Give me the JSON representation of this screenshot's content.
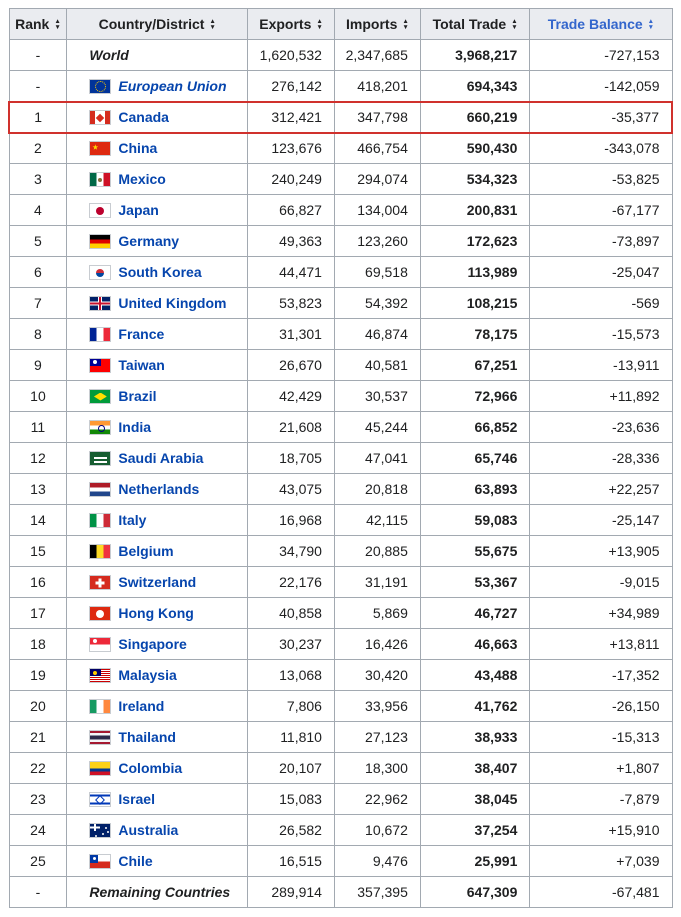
{
  "table": {
    "colors": {
      "link_blue": "#0645ad",
      "header_link_blue": "#3366cc",
      "header_bg": "#eaecf0",
      "table_border": "#a2a9b1",
      "highlight_red": "#d0312d"
    },
    "headers": [
      {
        "label": "Rank",
        "link": false
      },
      {
        "label": "Country/District",
        "link": false
      },
      {
        "label": "Exports",
        "link": false
      },
      {
        "label": "Imports",
        "link": false
      },
      {
        "label": "Total Trade",
        "link": false
      },
      {
        "label": "Trade Balance",
        "link": true
      }
    ],
    "rows": [
      {
        "rank": "-",
        "name": "World",
        "flag": null,
        "link": false,
        "italic": true,
        "highlight": false,
        "exports": "1,620,532",
        "imports": "2,347,685",
        "total": "3,968,217",
        "balance": "-727,153"
      },
      {
        "rank": "-",
        "name": "European Union",
        "flag": "eu",
        "link": true,
        "italic": true,
        "highlight": false,
        "exports": "276,142",
        "imports": "418,201",
        "total": "694,343",
        "balance": "-142,059"
      },
      {
        "rank": "1",
        "name": "Canada",
        "flag": "canada",
        "link": true,
        "italic": false,
        "highlight": true,
        "exports": "312,421",
        "imports": "347,798",
        "total": "660,219",
        "balance": "-35,377"
      },
      {
        "rank": "2",
        "name": "China",
        "flag": "china",
        "link": true,
        "italic": false,
        "highlight": false,
        "exports": "123,676",
        "imports": "466,754",
        "total": "590,430",
        "balance": "-343,078"
      },
      {
        "rank": "3",
        "name": "Mexico",
        "flag": "mexico",
        "link": true,
        "italic": false,
        "highlight": false,
        "exports": "240,249",
        "imports": "294,074",
        "total": "534,323",
        "balance": "-53,825"
      },
      {
        "rank": "4",
        "name": "Japan",
        "flag": "japan",
        "link": true,
        "italic": false,
        "highlight": false,
        "exports": "66,827",
        "imports": "134,004",
        "total": "200,831",
        "balance": "-67,177"
      },
      {
        "rank": "5",
        "name": "Germany",
        "flag": "germany",
        "link": true,
        "italic": false,
        "highlight": false,
        "exports": "49,363",
        "imports": "123,260",
        "total": "172,623",
        "balance": "-73,897"
      },
      {
        "rank": "6",
        "name": "South Korea",
        "flag": "southkorea",
        "link": true,
        "italic": false,
        "highlight": false,
        "exports": "44,471",
        "imports": "69,518",
        "total": "113,989",
        "balance": "-25,047"
      },
      {
        "rank": "7",
        "name": "United Kingdom",
        "flag": "uk",
        "link": true,
        "italic": false,
        "highlight": false,
        "exports": "53,823",
        "imports": "54,392",
        "total": "108,215",
        "balance": "-569"
      },
      {
        "rank": "8",
        "name": "France",
        "flag": "france",
        "link": true,
        "italic": false,
        "highlight": false,
        "exports": "31,301",
        "imports": "46,874",
        "total": "78,175",
        "balance": "-15,573"
      },
      {
        "rank": "9",
        "name": "Taiwan",
        "flag": "taiwan",
        "link": true,
        "italic": false,
        "highlight": false,
        "exports": "26,670",
        "imports": "40,581",
        "total": "67,251",
        "balance": "-13,911"
      },
      {
        "rank": "10",
        "name": "Brazil",
        "flag": "brazil",
        "link": true,
        "italic": false,
        "highlight": false,
        "exports": "42,429",
        "imports": "30,537",
        "total": "72,966",
        "balance": "+11,892"
      },
      {
        "rank": "11",
        "name": "India",
        "flag": "india",
        "link": true,
        "italic": false,
        "highlight": false,
        "exports": "21,608",
        "imports": "45,244",
        "total": "66,852",
        "balance": "-23,636"
      },
      {
        "rank": "12",
        "name": "Saudi Arabia",
        "flag": "saudiarabia",
        "link": true,
        "italic": false,
        "highlight": false,
        "exports": "18,705",
        "imports": "47,041",
        "total": "65,746",
        "balance": "-28,336"
      },
      {
        "rank": "13",
        "name": "Netherlands",
        "flag": "netherlands",
        "link": true,
        "italic": false,
        "highlight": false,
        "exports": "43,075",
        "imports": "20,818",
        "total": "63,893",
        "balance": "+22,257"
      },
      {
        "rank": "14",
        "name": "Italy",
        "flag": "italy",
        "link": true,
        "italic": false,
        "highlight": false,
        "exports": "16,968",
        "imports": "42,115",
        "total": "59,083",
        "balance": "-25,147"
      },
      {
        "rank": "15",
        "name": "Belgium",
        "flag": "belgium",
        "link": true,
        "italic": false,
        "highlight": false,
        "exports": "34,790",
        "imports": "20,885",
        "total": "55,675",
        "balance": "+13,905"
      },
      {
        "rank": "16",
        "name": "Switzerland",
        "flag": "switzerland",
        "link": true,
        "italic": false,
        "highlight": false,
        "exports": "22,176",
        "imports": "31,191",
        "total": "53,367",
        "balance": "-9,015"
      },
      {
        "rank": "17",
        "name": "Hong Kong",
        "flag": "hongkong",
        "link": true,
        "italic": false,
        "highlight": false,
        "exports": "40,858",
        "imports": "5,869",
        "total": "46,727",
        "balance": "+34,989"
      },
      {
        "rank": "18",
        "name": "Singapore",
        "flag": "singapore",
        "link": true,
        "italic": false,
        "highlight": false,
        "exports": "30,237",
        "imports": "16,426",
        "total": "46,663",
        "balance": "+13,811"
      },
      {
        "rank": "19",
        "name": "Malaysia",
        "flag": "malaysia",
        "link": true,
        "italic": false,
        "highlight": false,
        "exports": "13,068",
        "imports": "30,420",
        "total": "43,488",
        "balance": "-17,352"
      },
      {
        "rank": "20",
        "name": "Ireland",
        "flag": "ireland",
        "link": true,
        "italic": false,
        "highlight": false,
        "exports": "7,806",
        "imports": "33,956",
        "total": "41,762",
        "balance": "-26,150"
      },
      {
        "rank": "21",
        "name": "Thailand",
        "flag": "thailand",
        "link": true,
        "italic": false,
        "highlight": false,
        "exports": "11,810",
        "imports": "27,123",
        "total": "38,933",
        "balance": "-15,313"
      },
      {
        "rank": "22",
        "name": "Colombia",
        "flag": "colombia",
        "link": true,
        "italic": false,
        "highlight": false,
        "exports": "20,107",
        "imports": "18,300",
        "total": "38,407",
        "balance": "+1,807"
      },
      {
        "rank": "23",
        "name": "Israel",
        "flag": "israel",
        "link": true,
        "italic": false,
        "highlight": false,
        "exports": "15,083",
        "imports": "22,962",
        "total": "38,045",
        "balance": "-7,879"
      },
      {
        "rank": "24",
        "name": "Australia",
        "flag": "australia",
        "link": true,
        "italic": false,
        "highlight": false,
        "exports": "26,582",
        "imports": "10,672",
        "total": "37,254",
        "balance": "+15,910"
      },
      {
        "rank": "25",
        "name": "Chile",
        "flag": "chile",
        "link": true,
        "italic": false,
        "highlight": false,
        "exports": "16,515",
        "imports": "9,476",
        "total": "25,991",
        "balance": "+7,039"
      },
      {
        "rank": "-",
        "name": "Remaining Countries",
        "flag": null,
        "link": false,
        "italic": true,
        "highlight": false,
        "exports": "289,914",
        "imports": "357,395",
        "total": "647,309",
        "balance": "-67,481"
      }
    ]
  }
}
